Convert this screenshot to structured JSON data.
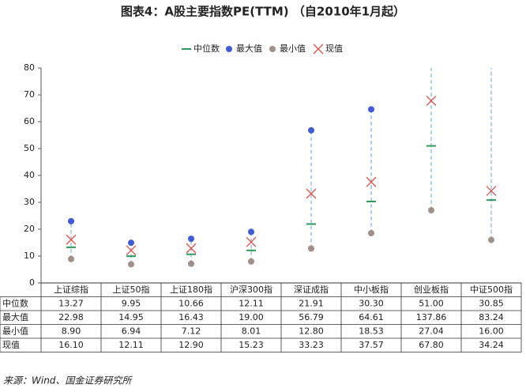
{
  "chart_data": {
    "type": "range-markers",
    "title": "图表4：A股主要指数PE(TTM) （自2010年1月起）",
    "categories": [
      "上证综指",
      "上证50指",
      "上证180指",
      "沪深300指",
      "深证成指",
      "中小板指",
      "创业板指",
      "中证500指"
    ],
    "series": [
      {
        "name": "中位数",
        "color": "#2e9a5a",
        "marker": "dash",
        "values": [
          13.27,
          9.95,
          10.66,
          12.11,
          21.91,
          30.3,
          51.0,
          30.85
        ],
        "value_labels": [
          "13.27",
          "9.95",
          "10.66",
          "12.11",
          "21.91",
          "30.30",
          "51.00",
          "30.85"
        ]
      },
      {
        "name": "最大值",
        "color": "#3f5bd6",
        "marker": "dot",
        "values": [
          22.98,
          14.95,
          16.43,
          19.0,
          56.79,
          64.61,
          137.86,
          83.24
        ],
        "value_labels": [
          "22.98",
          "14.95",
          "16.43",
          "19.00",
          "56.79",
          "64.61",
          "137.86",
          "83.24"
        ]
      },
      {
        "name": "最小值",
        "color": "#a09089",
        "marker": "dot",
        "values": [
          8.9,
          6.94,
          7.12,
          8.01,
          12.8,
          18.53,
          27.04,
          16.0
        ],
        "value_labels": [
          "8.90",
          "6.94",
          "7.12",
          "8.01",
          "12.80",
          "18.53",
          "27.04",
          "16.00"
        ]
      },
      {
        "name": "现值",
        "color": "#e0524c",
        "marker": "cross",
        "values": [
          16.1,
          12.11,
          12.9,
          15.23,
          33.23,
          37.57,
          67.8,
          34.24
        ],
        "value_labels": [
          "16.10",
          "12.11",
          "12.90",
          "15.23",
          "33.23",
          "37.57",
          "67.80",
          "34.24"
        ]
      }
    ],
    "range_color": "#9cc3e6",
    "ylim": [
      0,
      80
    ],
    "yticks": [
      0,
      10,
      20,
      30,
      40,
      50,
      60,
      70,
      80
    ],
    "source": "来源：Wind、国金证券研究所"
  }
}
